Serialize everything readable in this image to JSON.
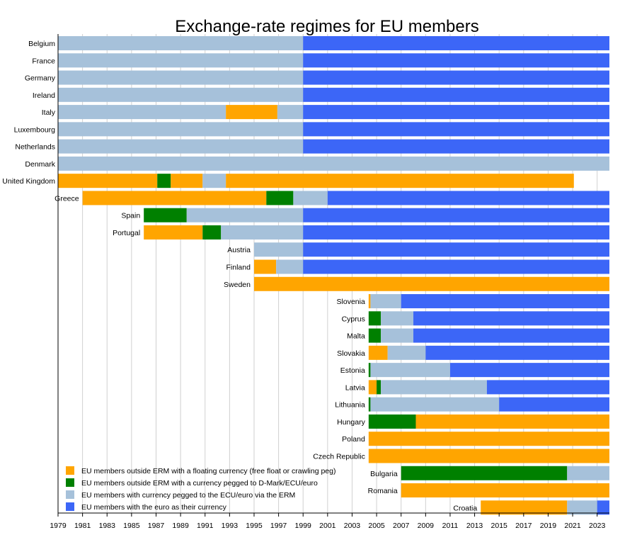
{
  "chart_data": {
    "type": "bar",
    "subtype": "horizontal-timeline",
    "title": "Exchange-rate regimes for EU members",
    "xlabel": "",
    "ylabel": "",
    "xlim": [
      1979,
      2024
    ],
    "x_ticks": [
      1979,
      1981,
      1983,
      1985,
      1987,
      1989,
      1991,
      1993,
      1995,
      1997,
      1999,
      2001,
      2003,
      2005,
      2007,
      2009,
      2011,
      2013,
      2015,
      2017,
      2019,
      2021,
      2023
    ],
    "grid": true,
    "legend_position": "bottom-left",
    "legend": [
      {
        "key": "float",
        "label": "EU members outside ERM with a floating currency (free float or crawling peg)",
        "color": "#FFA500"
      },
      {
        "key": "peg",
        "label": "EU members outside ERM with a currency pegged to D-Mark/ECU/euro",
        "color": "#008000"
      },
      {
        "key": "erm",
        "label": "EU members with currency pegged to the ECU/euro via the ERM",
        "color": "#A6C1DA"
      },
      {
        "key": "euro",
        "label": "EU members with the euro as their currency",
        "color": "#3C66F7"
      }
    ],
    "countries": [
      {
        "name": "Belgium",
        "segments": [
          [
            "erm",
            1979,
            1999
          ],
          [
            "euro",
            1999,
            2024
          ]
        ]
      },
      {
        "name": "France",
        "segments": [
          [
            "erm",
            1979,
            1999
          ],
          [
            "euro",
            1999,
            2024
          ]
        ]
      },
      {
        "name": "Germany",
        "segments": [
          [
            "erm",
            1979,
            1999
          ],
          [
            "euro",
            1999,
            2024
          ]
        ]
      },
      {
        "name": "Ireland",
        "segments": [
          [
            "erm",
            1979,
            1999
          ],
          [
            "euro",
            1999,
            2024
          ]
        ]
      },
      {
        "name": "Italy",
        "segments": [
          [
            "erm",
            1979,
            1992.7
          ],
          [
            "float",
            1992.7,
            1996.9
          ],
          [
            "erm",
            1996.9,
            1999
          ],
          [
            "euro",
            1999,
            2024
          ]
        ]
      },
      {
        "name": "Luxembourg",
        "segments": [
          [
            "erm",
            1979,
            1999
          ],
          [
            "euro",
            1999,
            2024
          ]
        ]
      },
      {
        "name": "Netherlands",
        "segments": [
          [
            "erm",
            1979,
            1999
          ],
          [
            "euro",
            1999,
            2024
          ]
        ]
      },
      {
        "name": "Denmark",
        "segments": [
          [
            "erm",
            1979,
            2024
          ]
        ]
      },
      {
        "name": "United Kingdom",
        "segments": [
          [
            "float",
            1979,
            1987.1
          ],
          [
            "peg",
            1987.1,
            1988.2
          ],
          [
            "float",
            1988.2,
            1990.8
          ],
          [
            "erm",
            1990.8,
            1992.7
          ],
          [
            "float",
            1992.7,
            2021.1
          ]
        ]
      },
      {
        "name": "Greece",
        "segments": [
          [
            "float",
            1981,
            1996
          ],
          [
            "peg",
            1996,
            1998.2
          ],
          [
            "erm",
            1998.2,
            2001
          ],
          [
            "euro",
            2001,
            2024
          ]
        ]
      },
      {
        "name": "Spain",
        "segments": [
          [
            "peg",
            1986,
            1989.5
          ],
          [
            "erm",
            1989.5,
            1999
          ],
          [
            "euro",
            1999,
            2024
          ]
        ]
      },
      {
        "name": "Portugal",
        "segments": [
          [
            "float",
            1986,
            1990.8
          ],
          [
            "peg",
            1990.8,
            1992.3
          ],
          [
            "erm",
            1992.3,
            1999
          ],
          [
            "euro",
            1999,
            2024
          ]
        ]
      },
      {
        "name": "Austria",
        "segments": [
          [
            "erm",
            1995,
            1999
          ],
          [
            "euro",
            1999,
            2024
          ]
        ]
      },
      {
        "name": "Finland",
        "segments": [
          [
            "float",
            1995,
            1996.8
          ],
          [
            "erm",
            1996.8,
            1999
          ],
          [
            "euro",
            1999,
            2024
          ]
        ]
      },
      {
        "name": "Sweden",
        "segments": [
          [
            "float",
            1995,
            2024
          ]
        ]
      },
      {
        "name": "Slovenia",
        "segments": [
          [
            "float",
            2004.35,
            2004.5
          ],
          [
            "erm",
            2004.5,
            2007
          ],
          [
            "euro",
            2007,
            2024
          ]
        ]
      },
      {
        "name": "Cyprus",
        "segments": [
          [
            "peg",
            2004.35,
            2005.35
          ],
          [
            "erm",
            2005.35,
            2008
          ],
          [
            "euro",
            2008,
            2024
          ]
        ]
      },
      {
        "name": "Malta",
        "segments": [
          [
            "peg",
            2004.35,
            2005.35
          ],
          [
            "erm",
            2005.35,
            2008
          ],
          [
            "euro",
            2008,
            2024
          ]
        ]
      },
      {
        "name": "Slovakia",
        "segments": [
          [
            "float",
            2004.35,
            2005.9
          ],
          [
            "erm",
            2005.9,
            2009
          ],
          [
            "euro",
            2009,
            2024
          ]
        ]
      },
      {
        "name": "Estonia",
        "segments": [
          [
            "peg",
            2004.35,
            2004.5
          ],
          [
            "erm",
            2004.5,
            2011
          ],
          [
            "euro",
            2011,
            2024
          ]
        ]
      },
      {
        "name": "Latvia",
        "segments": [
          [
            "float",
            2004.35,
            2005
          ],
          [
            "peg",
            2005,
            2005.35
          ],
          [
            "erm",
            2005.35,
            2014
          ],
          [
            "euro",
            2014,
            2024
          ]
        ]
      },
      {
        "name": "Lithuania",
        "segments": [
          [
            "peg",
            2004.35,
            2004.5
          ],
          [
            "erm",
            2004.5,
            2015
          ],
          [
            "euro",
            2015,
            2024
          ]
        ]
      },
      {
        "name": "Hungary",
        "segments": [
          [
            "peg",
            2004.35,
            2008.2
          ],
          [
            "float",
            2008.2,
            2024
          ]
        ]
      },
      {
        "name": "Poland",
        "segments": [
          [
            "float",
            2004.35,
            2024
          ]
        ]
      },
      {
        "name": "Czech Republic",
        "segments": [
          [
            "float",
            2004.35,
            2024
          ]
        ]
      },
      {
        "name": "Bulgaria",
        "segments": [
          [
            "peg",
            2007,
            2020.55
          ],
          [
            "erm",
            2020.55,
            2024
          ]
        ]
      },
      {
        "name": "Romania",
        "segments": [
          [
            "float",
            2007,
            2024
          ]
        ]
      },
      {
        "name": "Croatia",
        "segments": [
          [
            "float",
            2013.5,
            2020.55
          ],
          [
            "erm",
            2020.55,
            2023
          ],
          [
            "euro",
            2023,
            2024
          ]
        ]
      }
    ]
  }
}
